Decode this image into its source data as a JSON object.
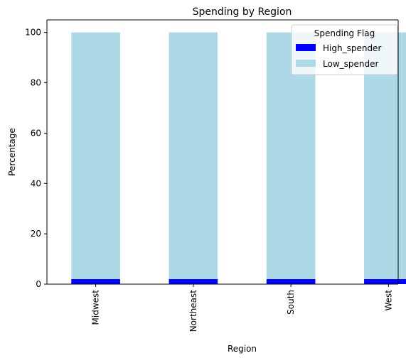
{
  "chart_data": {
    "type": "bar",
    "stacked": true,
    "title": "Spending by Region",
    "xlabel": "Region",
    "ylabel": "Percentage",
    "categories": [
      "Midwest",
      "Northeast",
      "South",
      "West"
    ],
    "series": [
      {
        "name": "High_spender",
        "values": [
          2.0,
          2.0,
          2.0,
          2.0
        ],
        "color": "#0000ff"
      },
      {
        "name": "Low_spender",
        "values": [
          98.0,
          98.0,
          98.0,
          98.0
        ],
        "color": "#add8e6"
      }
    ],
    "ylim": [
      0,
      105
    ],
    "yticks": [
      0,
      20,
      40,
      60,
      80,
      100
    ],
    "grid": false,
    "legend": {
      "title": "Spending Flag",
      "placement": "top-right"
    }
  }
}
